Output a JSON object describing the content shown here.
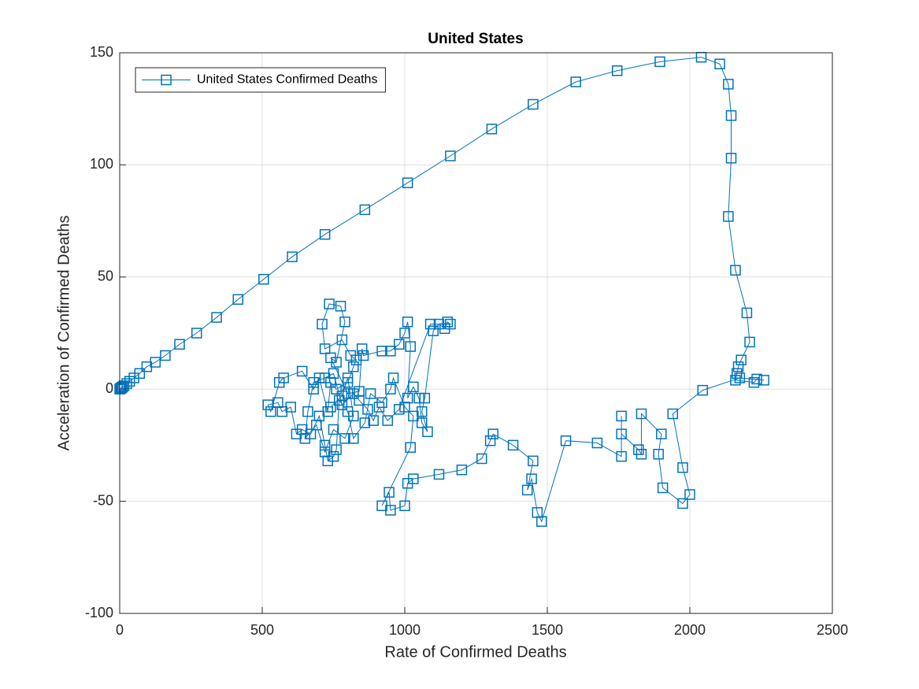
{
  "chart_data": {
    "type": "line",
    "title": "United States",
    "x_label": "Rate of Confirmed Deaths",
    "y_label": "Acceleration of Confirmed Deaths",
    "xlim": [
      0,
      2500
    ],
    "xticks": [
      0,
      500,
      1000,
      1500,
      2000,
      2500
    ],
    "ylim": [
      -100,
      150
    ],
    "yticks": [
      -100,
      -50,
      0,
      50,
      100,
      150
    ],
    "grid": true,
    "legend": "top-left",
    "marker": "square",
    "series": [
      {
        "name": "United States Confirmed Deaths",
        "color": "#0072bd",
        "x": [
          0,
          2,
          4,
          6,
          8,
          10,
          15,
          25,
          35,
          50,
          70,
          95,
          125,
          160,
          210,
          270,
          340,
          415,
          505,
          605,
          720,
          860,
          1010,
          1160,
          1305,
          1450,
          1600,
          1745,
          1895,
          2040,
          2105,
          2135,
          2145,
          2145,
          2135,
          2160,
          2200,
          2210,
          2180,
          2170,
          2165,
          2160,
          2225,
          2235,
          2260,
          2175,
          2045,
          1940,
          1975,
          2000,
          1975,
          1905,
          1890,
          1900,
          1830,
          1830,
          1820,
          1760,
          1760,
          1760,
          1675,
          1565,
          1480,
          1465,
          1445,
          1430,
          1450,
          1380,
          1310,
          1300,
          1270,
          1200,
          1120,
          1030,
          1010,
          1000,
          950,
          945,
          920,
          1020,
          1030,
          1000,
          960,
          950,
          920,
          880,
          860,
          820,
          800,
          770,
          760,
          750,
          730,
          720,
          700,
          670,
          640,
          620,
          600,
          570,
          555,
          520,
          530,
          560,
          575,
          640,
          680,
          700,
          730,
          740,
          760,
          800,
          820,
          830,
          810,
          780,
          720,
          710,
          735,
          775,
          790,
          760,
          740,
          800,
          840,
          850,
          855,
          920,
          950,
          980,
          1000,
          1010,
          1020,
          1010,
          1030,
          1050,
          1060,
          1080,
          1060,
          1070,
          1100,
          1120,
          1140,
          1150,
          1160,
          1090,
          980,
          940,
          910,
          890,
          870,
          840,
          820,
          780,
          750,
          720,
          680,
          660,
          650,
          690,
          720,
          750,
          790,
          820,
          800,
          780,
          740
        ],
        "values": [
          0,
          0.2,
          0.4,
          0.6,
          0.8,
          1,
          1.5,
          2.5,
          3.5,
          5,
          7,
          10,
          12,
          15,
          20,
          25,
          32,
          40,
          49,
          59,
          69,
          80,
          92,
          104,
          116,
          127,
          137,
          142,
          146,
          148,
          145,
          136,
          122,
          103,
          77,
          53,
          34,
          21,
          13,
          10,
          7,
          4,
          3,
          4.5,
          4,
          5,
          -0.5,
          -11,
          -35,
          -47,
          -51,
          -44,
          -29,
          -20,
          -11,
          -29,
          -27,
          -20,
          -12,
          -30,
          -24,
          -23,
          -59,
          -55,
          -40,
          -45,
          -32,
          -25,
          -20,
          -23,
          -31,
          -36,
          -38,
          -40,
          -42,
          -52,
          -54,
          -46,
          -52,
          -26,
          -12,
          -8,
          5,
          0,
          -6,
          -2,
          -15,
          -22,
          -10,
          -5,
          -27,
          -30,
          -32,
          -25,
          -12,
          -20,
          -18,
          -20,
          -8,
          -10,
          -6,
          -7,
          -10,
          3,
          5,
          8,
          0,
          5,
          -10,
          3,
          0,
          3,
          10,
          13,
          15,
          22,
          18,
          29,
          38,
          37,
          30,
          12,
          14,
          -2,
          -1,
          18,
          15,
          17,
          17,
          20,
          25,
          30,
          19,
          -4,
          1,
          -4,
          -15,
          -19,
          -10,
          -4,
          26,
          29,
          27,
          30,
          29,
          29,
          -9,
          -14,
          -8,
          -14,
          -9,
          -5,
          -2,
          -7,
          7,
          5,
          3,
          -10,
          -22,
          -16,
          -28,
          -18,
          -22,
          -12,
          5,
          -3,
          -8
        ]
      }
    ]
  }
}
